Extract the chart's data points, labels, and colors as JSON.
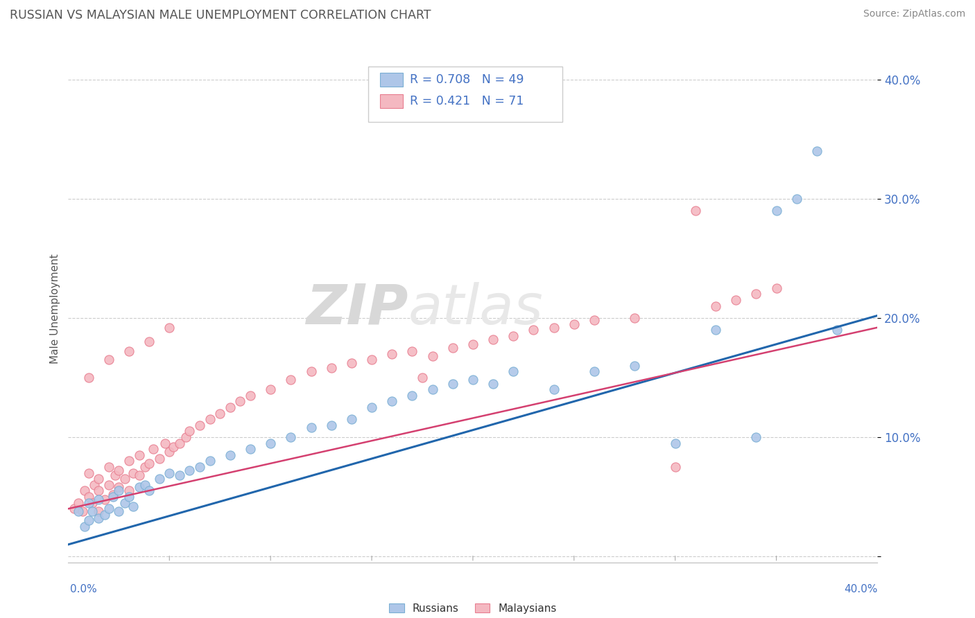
{
  "title": "RUSSIAN VS MALAYSIAN MALE UNEMPLOYMENT CORRELATION CHART",
  "source": "Source: ZipAtlas.com",
  "ylabel": "Male Unemployment",
  "xlim": [
    0.0,
    0.4
  ],
  "ylim": [
    -0.005,
    0.42
  ],
  "yticks": [
    0.0,
    0.1,
    0.2,
    0.3,
    0.4
  ],
  "ytick_labels": [
    "",
    "10.0%",
    "20.0%",
    "30.0%",
    "40.0%"
  ],
  "blue_color": "#aec6e8",
  "blue_edge_color": "#7aafd4",
  "pink_color": "#f4b8c1",
  "pink_edge_color": "#e87e90",
  "blue_line_color": "#2166ac",
  "pink_line_color": "#d44070",
  "watermark_zip": "ZIP",
  "watermark_atlas": "atlas",
  "background_color": "#ffffff",
  "grid_color": "#cccccc",
  "tick_label_color": "#4472c4",
  "title_color": "#555555",
  "source_color": "#888888",
  "rus_line_slope": 0.48,
  "rus_line_intercept": 0.01,
  "mal_line_slope": 0.38,
  "mal_line_intercept": 0.04,
  "russians_x": [
    0.005,
    0.008,
    0.01,
    0.01,
    0.012,
    0.015,
    0.015,
    0.018,
    0.02,
    0.022,
    0.025,
    0.025,
    0.028,
    0.03,
    0.032,
    0.035,
    0.038,
    0.04,
    0.045,
    0.05,
    0.055,
    0.06,
    0.065,
    0.07,
    0.08,
    0.09,
    0.1,
    0.11,
    0.12,
    0.13,
    0.14,
    0.15,
    0.16,
    0.17,
    0.18,
    0.19,
    0.2,
    0.21,
    0.22,
    0.24,
    0.26,
    0.28,
    0.3,
    0.32,
    0.34,
    0.35,
    0.36,
    0.37,
    0.38
  ],
  "russians_y": [
    0.038,
    0.025,
    0.045,
    0.03,
    0.038,
    0.032,
    0.048,
    0.035,
    0.04,
    0.05,
    0.038,
    0.055,
    0.045,
    0.05,
    0.042,
    0.058,
    0.06,
    0.055,
    0.065,
    0.07,
    0.068,
    0.072,
    0.075,
    0.08,
    0.085,
    0.09,
    0.095,
    0.1,
    0.108,
    0.11,
    0.115,
    0.125,
    0.13,
    0.135,
    0.14,
    0.145,
    0.148,
    0.145,
    0.155,
    0.14,
    0.155,
    0.16,
    0.095,
    0.19,
    0.1,
    0.29,
    0.3,
    0.34,
    0.19
  ],
  "malaysians_x": [
    0.003,
    0.005,
    0.007,
    0.008,
    0.01,
    0.01,
    0.012,
    0.013,
    0.015,
    0.015,
    0.015,
    0.018,
    0.02,
    0.02,
    0.022,
    0.023,
    0.025,
    0.025,
    0.028,
    0.03,
    0.03,
    0.032,
    0.035,
    0.035,
    0.038,
    0.04,
    0.042,
    0.045,
    0.048,
    0.05,
    0.052,
    0.055,
    0.058,
    0.06,
    0.065,
    0.07,
    0.075,
    0.08,
    0.085,
    0.09,
    0.1,
    0.11,
    0.12,
    0.13,
    0.14,
    0.15,
    0.16,
    0.17,
    0.175,
    0.18,
    0.19,
    0.2,
    0.21,
    0.22,
    0.23,
    0.24,
    0.25,
    0.26,
    0.28,
    0.3,
    0.31,
    0.32,
    0.33,
    0.34,
    0.35,
    0.01,
    0.02,
    0.03,
    0.04,
    0.05
  ],
  "malaysians_y": [
    0.04,
    0.045,
    0.038,
    0.055,
    0.05,
    0.07,
    0.045,
    0.06,
    0.055,
    0.038,
    0.065,
    0.048,
    0.06,
    0.075,
    0.052,
    0.068,
    0.058,
    0.072,
    0.065,
    0.055,
    0.08,
    0.07,
    0.068,
    0.085,
    0.075,
    0.078,
    0.09,
    0.082,
    0.095,
    0.088,
    0.092,
    0.095,
    0.1,
    0.105,
    0.11,
    0.115,
    0.12,
    0.125,
    0.13,
    0.135,
    0.14,
    0.148,
    0.155,
    0.158,
    0.162,
    0.165,
    0.17,
    0.172,
    0.15,
    0.168,
    0.175,
    0.178,
    0.182,
    0.185,
    0.19,
    0.192,
    0.195,
    0.198,
    0.2,
    0.075,
    0.29,
    0.21,
    0.215,
    0.22,
    0.225,
    0.15,
    0.165,
    0.172,
    0.18,
    0.192
  ]
}
